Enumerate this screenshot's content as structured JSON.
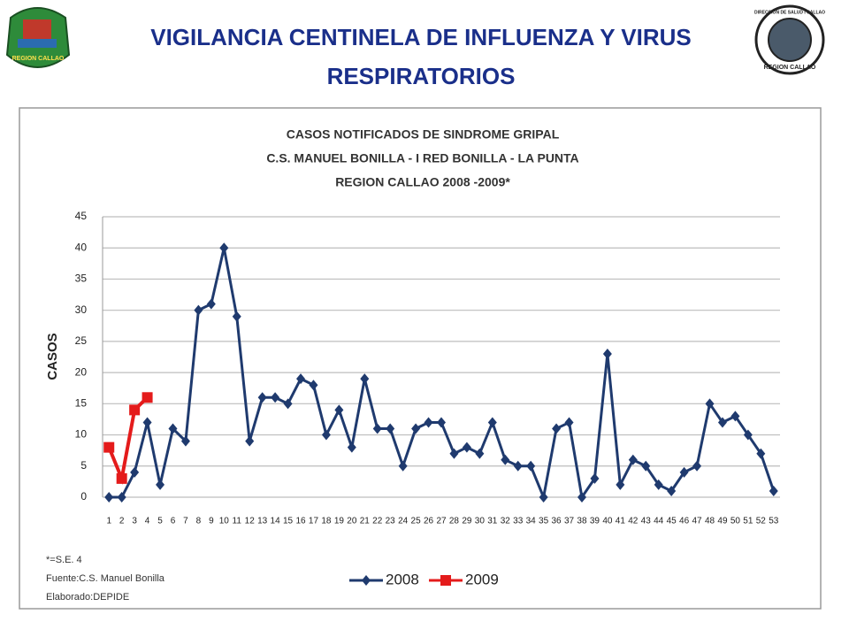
{
  "header": {
    "title_lines": [
      "VIGILANCIA CENTINELA DE INFLUENZA Y VIRUS",
      "RESPIRATORIOS"
    ],
    "left_logo_text": "REGION CALLAO",
    "right_logo_top": "DIRECCION DE SALUD I CALLAO",
    "right_logo_bottom": "REGION CALLAO"
  },
  "chart_data": {
    "type": "line",
    "title": [
      "CASOS NOTIFICADOS DE SINDROME GRIPAL",
      "C.S. MANUEL BONILLA  - I RED BONILLA - LA PUNTA",
      "REGION CALLAO    2008 -2009*"
    ],
    "y_label": "CASOS",
    "categories": [
      "1",
      "2",
      "3",
      "4",
      "5",
      "6",
      "7",
      "8",
      "9",
      "10",
      "11",
      "12",
      "13",
      "14",
      "15",
      "16",
      "17",
      "18",
      "19",
      "20",
      "21",
      "22",
      "23",
      "24",
      "25",
      "26",
      "27",
      "28",
      "29",
      "30",
      "31",
      "32",
      "33",
      "34",
      "35",
      "36",
      "37",
      "38",
      "39",
      "40",
      "41",
      "42",
      "43",
      "44",
      "45",
      "46",
      "47",
      "48",
      "49",
      "50",
      "51",
      "52",
      "53"
    ],
    "series": [
      {
        "name": "2008",
        "color": "#1f3a6e",
        "marker": "diamond",
        "values": [
          0,
          0,
          4,
          12,
          2,
          11,
          9,
          30,
          31,
          40,
          29,
          9,
          16,
          16,
          15,
          19,
          18,
          10,
          14,
          8,
          19,
          11,
          11,
          5,
          11,
          12,
          12,
          7,
          8,
          7,
          12,
          6,
          5,
          5,
          0,
          11,
          12,
          0,
          3,
          23,
          2,
          6,
          5,
          2,
          1,
          4,
          5,
          15,
          12,
          13,
          10,
          7,
          1
        ]
      },
      {
        "name": "2009",
        "color": "#e41b1b",
        "marker": "square",
        "values": [
          8,
          3,
          14,
          16,
          null,
          null,
          null,
          null,
          null,
          null,
          null,
          null,
          null,
          null,
          null,
          null,
          null,
          null,
          null,
          null,
          null,
          null,
          null,
          null,
          null,
          null,
          null,
          null,
          null,
          null,
          null,
          null,
          null,
          null,
          null,
          null,
          null,
          null,
          null,
          null,
          null,
          null,
          null,
          null,
          null,
          null,
          null,
          null,
          null,
          null,
          null,
          null,
          null
        ]
      }
    ],
    "ylim": [
      0,
      45
    ],
    "yticks": [
      0,
      5,
      10,
      15,
      20,
      25,
      30,
      35,
      40,
      45
    ],
    "grid": true,
    "legend": "bottom"
  },
  "notes": [
    "*=S.E. 4",
    "Fuente:C.S. Manuel Bonilla",
    "Elaborado:DEPIDE"
  ]
}
